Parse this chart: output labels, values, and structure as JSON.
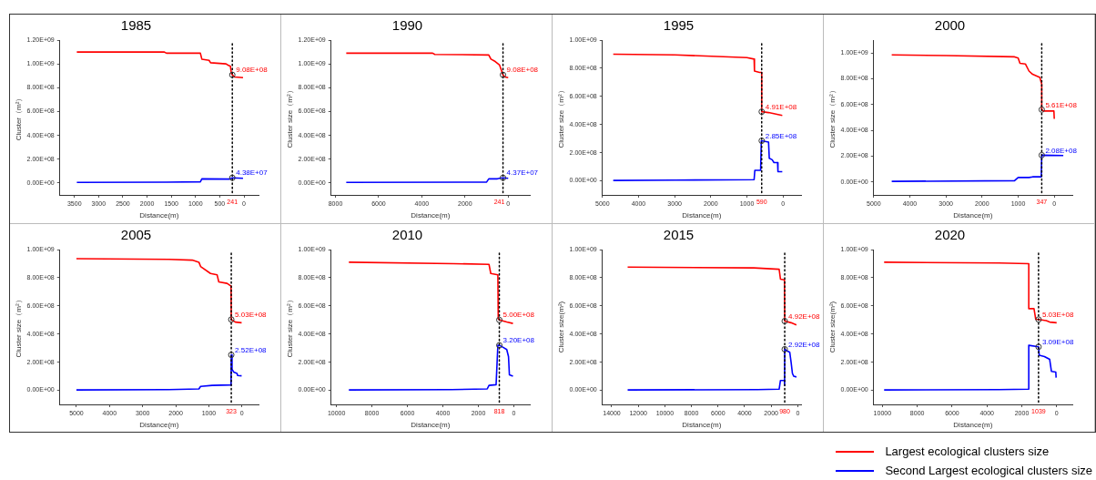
{
  "chart_data": [
    {
      "type": "line",
      "title": "1985",
      "xlabel": "Distance(m)",
      "ylabel": "Cluster（m²）",
      "xlim": [
        3800,
        -300
      ],
      "xticks": [
        3500,
        3000,
        2500,
        2000,
        1500,
        1000,
        500,
        0
      ],
      "ylim": [
        -100000000,
        1200000000
      ],
      "yticks": [
        {
          "value": 0,
          "label": "0.00E+00"
        },
        {
          "value": 200000000,
          "label": "2.00E+08"
        },
        {
          "value": 400000000,
          "label": "4.00E+08"
        },
        {
          "value": 600000000,
          "label": "6.00E+08"
        },
        {
          "value": 800000000,
          "label": "8.00E+08"
        },
        {
          "value": 1000000000,
          "label": "1.00E+09"
        },
        {
          "value": 1200000000,
          "label": "1.20E+09"
        }
      ],
      "grid": false,
      "series": [
        {
          "color": "#ff0000",
          "x": [
            3450,
            1650,
            1600,
            900,
            870,
            720,
            690,
            370,
            330,
            280,
            260,
            241,
            195,
            20
          ],
          "values": [
            1100000000,
            1100000000,
            1090000000,
            1090000000,
            1040000000,
            1030000000,
            1010000000,
            1000000000,
            990000000,
            980000000,
            920000000,
            908000000,
            890000000,
            885000000
          ]
        },
        {
          "color": "#0000ff",
          "x": [
            3450,
            1600,
            900,
            870,
            300,
            241,
            20
          ],
          "values": [
            5000000,
            7000000,
            10000000,
            35000000,
            33000000,
            43800000,
            40000000
          ]
        }
      ],
      "ref_lines": [
        {
          "axis": "x",
          "value": 241,
          "label": "241",
          "line_style": "dotted"
        }
      ],
      "annotations": [
        {
          "text": "9.08E+08",
          "x": 241,
          "y": 908000000
        },
        {
          "text": "4.38E+07",
          "x": 241,
          "y": 43800000
        }
      ]
    },
    {
      "type": "line",
      "title": "1990",
      "xlabel": "Distance(m)",
      "ylabel": "Cluster size（m²）",
      "xlim": [
        8200,
        -1000
      ],
      "xticks": [
        8000,
        6000,
        4000,
        2000,
        0
      ],
      "ylim": [
        -100000000,
        1200000000
      ],
      "yticks": [
        {
          "value": 0,
          "label": "0.00E+00"
        },
        {
          "value": 200000000,
          "label": "2.00E+08"
        },
        {
          "value": 400000000,
          "label": "4.00E+08"
        },
        {
          "value": 600000000,
          "label": "6.00E+08"
        },
        {
          "value": 800000000,
          "label": "8.00E+08"
        },
        {
          "value": 1000000000,
          "label": "1.00E+09"
        },
        {
          "value": 1200000000,
          "label": "1.20E+09"
        }
      ],
      "grid": false,
      "series": [
        {
          "color": "#ff0000",
          "x": [
            7500,
            3500,
            3400,
            900,
            800,
            600,
            400,
            241,
            150,
            0
          ],
          "values": [
            1090000000,
            1090000000,
            1080000000,
            1075000000,
            1040000000,
            1020000000,
            990000000,
            908000000,
            890000000,
            885000000
          ]
        },
        {
          "color": "#0000ff",
          "x": [
            7500,
            1000,
            900,
            500,
            400,
            241,
            0
          ],
          "values": [
            5000000,
            8000000,
            35000000,
            35000000,
            40000000,
            43700000,
            40000000
          ]
        }
      ],
      "ref_lines": [
        {
          "axis": "x",
          "value": 241,
          "label": "241",
          "line_style": "dotted"
        }
      ],
      "annotations": [
        {
          "text": "9.08E+08",
          "x": 241,
          "y": 908000000
        },
        {
          "text": "4.37E+07",
          "x": 241,
          "y": 43700000
        }
      ]
    },
    {
      "type": "line",
      "title": "1995",
      "xlabel": "Distance(m)",
      "ylabel": "Cluster size（m²）",
      "xlim": [
        5000,
        -500
      ],
      "xticks": [
        5000,
        4000,
        3000,
        2000,
        1000,
        0
      ],
      "ylim": [
        -100000000,
        1000000000
      ],
      "yticks": [
        {
          "value": 0,
          "label": "0.00E+00"
        },
        {
          "value": 200000000,
          "label": "2.00E+08"
        },
        {
          "value": 400000000,
          "label": "4.00E+08"
        },
        {
          "value": 600000000,
          "label": "6.00E+08"
        },
        {
          "value": 800000000,
          "label": "8.00E+08"
        },
        {
          "value": 1000000000,
          "label": "1.00E+09"
        }
      ],
      "grid": false,
      "series": [
        {
          "color": "#ff0000",
          "x": [
            4700,
            3000,
            1000,
            800,
            790,
            650,
            590,
            590,
            400,
            20
          ],
          "values": [
            900000000,
            895000000,
            875000000,
            865000000,
            780000000,
            770000000,
            770000000,
            491000000,
            485000000,
            465000000
          ]
        },
        {
          "color": "#0000ff",
          "x": [
            4700,
            3000,
            800,
            780,
            620,
            600,
            590,
            500,
            400,
            380,
            300,
            250,
            150,
            140,
            20
          ],
          "values": [
            3000000,
            5000000,
            8000000,
            75000000,
            75000000,
            285000000,
            285000000,
            280000000,
            275000000,
            160000000,
            150000000,
            130000000,
            130000000,
            65000000,
            65000000
          ]
        }
      ],
      "ref_lines": [
        {
          "axis": "x",
          "value": 590,
          "label": "590",
          "line_style": "dotted"
        }
      ],
      "annotations": [
        {
          "text": "4.91E+08",
          "x": 590,
          "y": 491000000
        },
        {
          "text": "2.85E+08",
          "x": 590,
          "y": 285000000
        }
      ]
    },
    {
      "type": "line",
      "title": "2000",
      "xlabel": "Distance(m)",
      "ylabel": "Cluster size（m²）",
      "xlim": [
        5000,
        -500
      ],
      "xticks": [
        5000,
        4000,
        3000,
        2000,
        1000,
        0
      ],
      "ylim": [
        -100000000,
        1100000000
      ],
      "yticks": [
        {
          "value": 0,
          "label": "0.00E+00"
        },
        {
          "value": 200000000,
          "label": "2.00E+08"
        },
        {
          "value": 400000000,
          "label": "4.00E+08"
        },
        {
          "value": 600000000,
          "label": "6.00E+08"
        },
        {
          "value": 800000000,
          "label": "8.00E+08"
        },
        {
          "value": 1000000000,
          "label": "1.00E+09"
        }
      ],
      "grid": false,
      "series": [
        {
          "color": "#ff0000",
          "x": [
            4500,
            3000,
            1100,
            1000,
            950,
            800,
            700,
            600,
            400,
            370,
            347,
            347,
            300,
            10,
            0
          ],
          "values": [
            985000000,
            980000000,
            970000000,
            960000000,
            920000000,
            915000000,
            860000000,
            835000000,
            810000000,
            780000000,
            760000000,
            561000000,
            550000000,
            550000000,
            490000000
          ]
        },
        {
          "color": "#0000ff",
          "x": [
            4500,
            1100,
            1000,
            700,
            600,
            360,
            347,
            -250
          ],
          "values": [
            5000000,
            10000000,
            35000000,
            35000000,
            40000000,
            40000000,
            208000000,
            205000000
          ]
        }
      ],
      "ref_lines": [
        {
          "axis": "x",
          "value": 347,
          "label": "347",
          "line_style": "dotted"
        }
      ],
      "annotations": [
        {
          "text": "5.61E+08",
          "x": 347,
          "y": 561000000
        },
        {
          "text": "2.08E+08",
          "x": 347,
          "y": 208000000
        }
      ]
    },
    {
      "type": "line",
      "title": "2005",
      "xlabel": "Distance(m)",
      "ylabel": "Cluster size（m²）",
      "xlim": [
        5500,
        -500
      ],
      "xticks": [
        5000,
        4000,
        3000,
        2000,
        1000,
        0
      ],
      "ylim": [
        -100000000,
        1000000000
      ],
      "yticks": [
        {
          "value": 0,
          "label": "0.00E+00"
        },
        {
          "value": 200000000,
          "label": "2.00E+08"
        },
        {
          "value": 400000000,
          "label": "4.00E+08"
        },
        {
          "value": 600000000,
          "label": "6.00E+08"
        },
        {
          "value": 800000000,
          "label": "8.00E+08"
        },
        {
          "value": 1000000000,
          "label": "1.00E+09"
        }
      ],
      "grid": false,
      "series": [
        {
          "color": "#ff0000",
          "x": [
            5000,
            2200,
            1500,
            1300,
            1250,
            950,
            750,
            700,
            450,
            330,
            323,
            200,
            10
          ],
          "values": [
            935000000,
            930000000,
            925000000,
            910000000,
            880000000,
            830000000,
            820000000,
            770000000,
            760000000,
            740000000,
            503000000,
            485000000,
            480000000
          ]
        },
        {
          "color": "#0000ff",
          "x": [
            5000,
            2200,
            1300,
            1250,
            900,
            330,
            323,
            300,
            250,
            150,
            130,
            10
          ],
          "values": [
            3000000,
            5000000,
            10000000,
            28000000,
            35000000,
            38000000,
            252000000,
            150000000,
            130000000,
            120000000,
            105000000,
            103000000
          ]
        }
      ],
      "ref_lines": [
        {
          "axis": "x",
          "value": 323,
          "label": "323",
          "line_style": "dotted"
        }
      ],
      "annotations": [
        {
          "text": "5.03E+08",
          "x": 323,
          "y": 503000000
        },
        {
          "text": "2.52E+08",
          "x": 323,
          "y": 252000000
        }
      ]
    },
    {
      "type": "line",
      "title": "2010",
      "xlabel": "Distance(m)",
      "ylabel": "Cluster size（m²）",
      "xlim": [
        10300,
        -900
      ],
      "xticks": [
        10000,
        8000,
        6000,
        4000,
        2000,
        0
      ],
      "ylim": [
        -100000000,
        1000000000
      ],
      "yticks": [
        {
          "value": 0,
          "label": "0.00E+00"
        },
        {
          "value": 200000000,
          "label": "2.00E+08"
        },
        {
          "value": 400000000,
          "label": "4.00E+08"
        },
        {
          "value": 600000000,
          "label": "6.00E+08"
        },
        {
          "value": 800000000,
          "label": "8.00E+08"
        },
        {
          "value": 1000000000,
          "label": "1.00E+09"
        }
      ],
      "grid": false,
      "series": [
        {
          "color": "#ff0000",
          "x": [
            9300,
            3400,
            1400,
            1300,
            900,
            880,
            818,
            400,
            50
          ],
          "values": [
            910000000,
            900000000,
            895000000,
            830000000,
            820000000,
            510000000,
            500000000,
            485000000,
            475000000
          ]
        },
        {
          "color": "#0000ff",
          "x": [
            9300,
            3500,
            1500,
            1400,
            1000,
            900,
            818,
            600,
            400,
            300,
            250,
            50
          ],
          "values": [
            3000000,
            5000000,
            10000000,
            35000000,
            40000000,
            320000000,
            320000000,
            305000000,
            290000000,
            240000000,
            110000000,
            100000000
          ]
        }
      ],
      "ref_lines": [
        {
          "axis": "x",
          "value": 818,
          "label": "818",
          "line_style": "dotted"
        }
      ],
      "annotations": [
        {
          "text": "5.00E+08",
          "x": 818,
          "y": 500000000
        },
        {
          "text": "3.20E+08",
          "x": 818,
          "y": 320000000
        }
      ]
    },
    {
      "type": "line",
      "title": "2015",
      "xlabel": "Distance(m)",
      "ylabel": "Cluster size(m²)",
      "xlim": [
        14700,
        -250
      ],
      "xticks": [
        14000,
        12000,
        10000,
        8000,
        6000,
        4000,
        2000,
        0
      ],
      "ylim": [
        -100000000,
        1000000000
      ],
      "yticks": [
        {
          "value": 0,
          "label": "0.00E+00"
        },
        {
          "value": 200000000,
          "label": "2.00E+08"
        },
        {
          "value": 400000000,
          "label": "4.00E+08"
        },
        {
          "value": 600000000,
          "label": "6.00E+08"
        },
        {
          "value": 800000000,
          "label": "8.00E+08"
        },
        {
          "value": 1000000000,
          "label": "1.00E+09"
        }
      ],
      "grid": false,
      "series": [
        {
          "color": "#ff0000",
          "x": [
            12800,
            3300,
            1400,
            1300,
            1000,
            980,
            500,
            100
          ],
          "values": [
            875000000,
            870000000,
            860000000,
            790000000,
            785000000,
            492000000,
            480000000,
            465000000
          ]
        },
        {
          "color": "#0000ff",
          "x": [
            12800,
            3000,
            1400,
            1300,
            1000,
            990,
            980,
            800,
            600,
            500,
            400,
            300,
            100
          ],
          "values": [
            3000000,
            5000000,
            8000000,
            70000000,
            70000000,
            35000000,
            292000000,
            280000000,
            270000000,
            200000000,
            120000000,
            100000000,
            95000000
          ]
        }
      ],
      "ref_lines": [
        {
          "axis": "x",
          "value": 980,
          "label": "980",
          "line_style": "dotted"
        }
      ],
      "annotations": [
        {
          "text": "4.92E+08",
          "x": 980,
          "y": 492000000
        },
        {
          "text": "2.92E+08",
          "x": 980,
          "y": 292000000
        }
      ]
    },
    {
      "type": "line",
      "title": "2020",
      "xlabel": "Distance(m)",
      "ylabel": "Cluster size(m²)",
      "xlim": [
        10500,
        -900
      ],
      "xticks": [
        10000,
        8000,
        6000,
        4000,
        2000,
        0
      ],
      "ylim": [
        -100000000,
        1000000000
      ],
      "yticks": [
        {
          "value": 0,
          "label": "0.00E+00"
        },
        {
          "value": 200000000,
          "label": "2.00E+08"
        },
        {
          "value": 400000000,
          "label": "4.00E+08"
        },
        {
          "value": 600000000,
          "label": "6.00E+08"
        },
        {
          "value": 800000000,
          "label": "8.00E+08"
        },
        {
          "value": 1000000000,
          "label": "1.00E+09"
        }
      ],
      "grid": false,
      "legend": "bottom left",
      "series": [
        {
          "name": "Largest ecological clusters size",
          "color": "#ff0000",
          "x": [
            9900,
            3300,
            1600,
            1600,
            1300,
            1200,
            1039,
            600,
            400,
            0
          ],
          "values": [
            910000000,
            905000000,
            900000000,
            580000000,
            580000000,
            505000000,
            503000000,
            495000000,
            485000000,
            480000000
          ]
        },
        {
          "name": "Second Largest ecological clusters size",
          "color": "#0000ff",
          "x": [
            9900,
            3300,
            1600,
            1600,
            1039,
            1000,
            700,
            400,
            300,
            50,
            30
          ],
          "values": [
            3000000,
            5000000,
            8000000,
            320000000,
            309000000,
            250000000,
            240000000,
            220000000,
            135000000,
            130000000,
            90000000
          ]
        }
      ],
      "ref_lines": [
        {
          "axis": "x",
          "value": 1039,
          "label": "1039",
          "line_style": "dotted"
        }
      ],
      "annotations": [
        {
          "text": "5.03E+08",
          "x": 1039,
          "y": 503000000
        },
        {
          "text": "3.09E+08",
          "x": 1039,
          "y": 309000000
        }
      ]
    }
  ]
}
